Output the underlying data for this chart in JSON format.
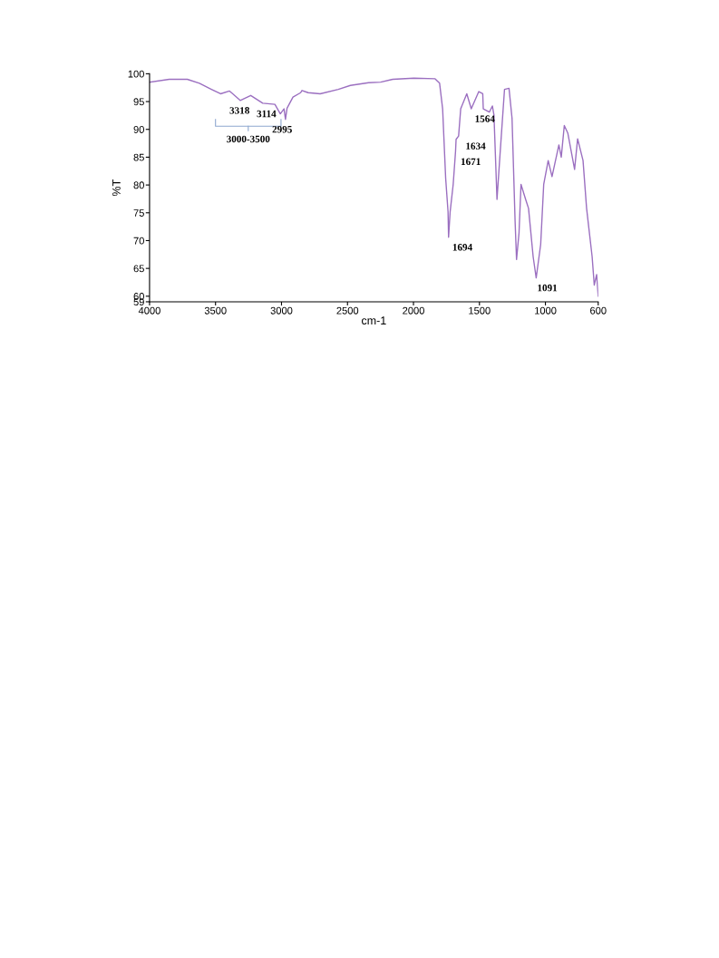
{
  "chart_data": {
    "type": "line",
    "xlabel": "cm-1",
    "ylabel": "%T",
    "xlim": [
      4000,
      600
    ],
    "xticks": [
      4000,
      3500,
      3000,
      2500,
      2000,
      1500,
      1000,
      600
    ],
    "ylim": [
      59,
      100
    ],
    "yticks": [
      59,
      60,
      65,
      70,
      75,
      80,
      85,
      90,
      95,
      100
    ],
    "grid": false,
    "legend": false,
    "marker": "none",
    "line_style": "solid",
    "series": [
      {
        "color": "#9b6fc0",
        "x": [
          4000,
          3851,
          3714,
          3622,
          3531,
          3462,
          3394,
          3313,
          3233,
          3142,
          3050,
          3009,
          2981,
          2970,
          2958,
          2913,
          2855,
          2845,
          2798,
          2707,
          2570,
          2478,
          2340,
          2249,
          2157,
          1997,
          1836,
          1802,
          1779,
          1756,
          1738,
          1734,
          1722,
          1699,
          1681,
          1677,
          1658,
          1642,
          1596,
          1562,
          1505,
          1475,
          1471,
          1425,
          1402,
          1390,
          1367,
          1344,
          1310,
          1276,
          1253,
          1230,
          1219,
          1200,
          1185,
          1150,
          1128,
          1093,
          1070,
          1036,
          1013,
          979,
          950,
          898,
          880,
          857,
          830,
          779,
          756,
          715,
          688,
          646,
          630,
          612,
          600
        ],
        "values": [
          98.5,
          99.0,
          99.0,
          98.3,
          97.2,
          96.4,
          96.9,
          95.2,
          96.1,
          94.7,
          94.5,
          92.8,
          93.7,
          91.8,
          93.8,
          95.8,
          96.6,
          97.0,
          96.6,
          96.4,
          97.2,
          97.9,
          98.4,
          98.5,
          99.0,
          99.2,
          99.1,
          98.3,
          93.7,
          81.2,
          75.2,
          70.6,
          75.2,
          80.1,
          86.1,
          88.2,
          88.8,
          93.7,
          96.4,
          93.7,
          96.8,
          96.4,
          93.7,
          93.1,
          94.2,
          92.6,
          77.4,
          85.5,
          97.2,
          97.4,
          92.0,
          73.6,
          66.6,
          71.4,
          80.1,
          77.4,
          75.8,
          67.1,
          63.3,
          69.3,
          80.1,
          84.4,
          81.5,
          87.2,
          85.0,
          90.7,
          89.3,
          82.8,
          88.3,
          84.4,
          75.8,
          67.1,
          62.0,
          63.9,
          60.0
        ]
      }
    ],
    "annotations": [
      {
        "text": "3318",
        "x": 3318,
        "y": 95.2
      },
      {
        "text": "3114",
        "x": 3114,
        "y": 94.6
      },
      {
        "text": "2995",
        "x": 2995,
        "y": 91.8
      },
      {
        "text": "1564",
        "x": 1564,
        "y": 93.7
      },
      {
        "text": "1634",
        "x": 1634,
        "y": 88.8
      },
      {
        "text": "1671",
        "x": 1671,
        "y": 86.0
      },
      {
        "text": "1694",
        "x": 1734,
        "y": 70.6
      },
      {
        "text": "1091",
        "x": 1091,
        "y": 63.3
      },
      "3000-3500"
    ]
  }
}
